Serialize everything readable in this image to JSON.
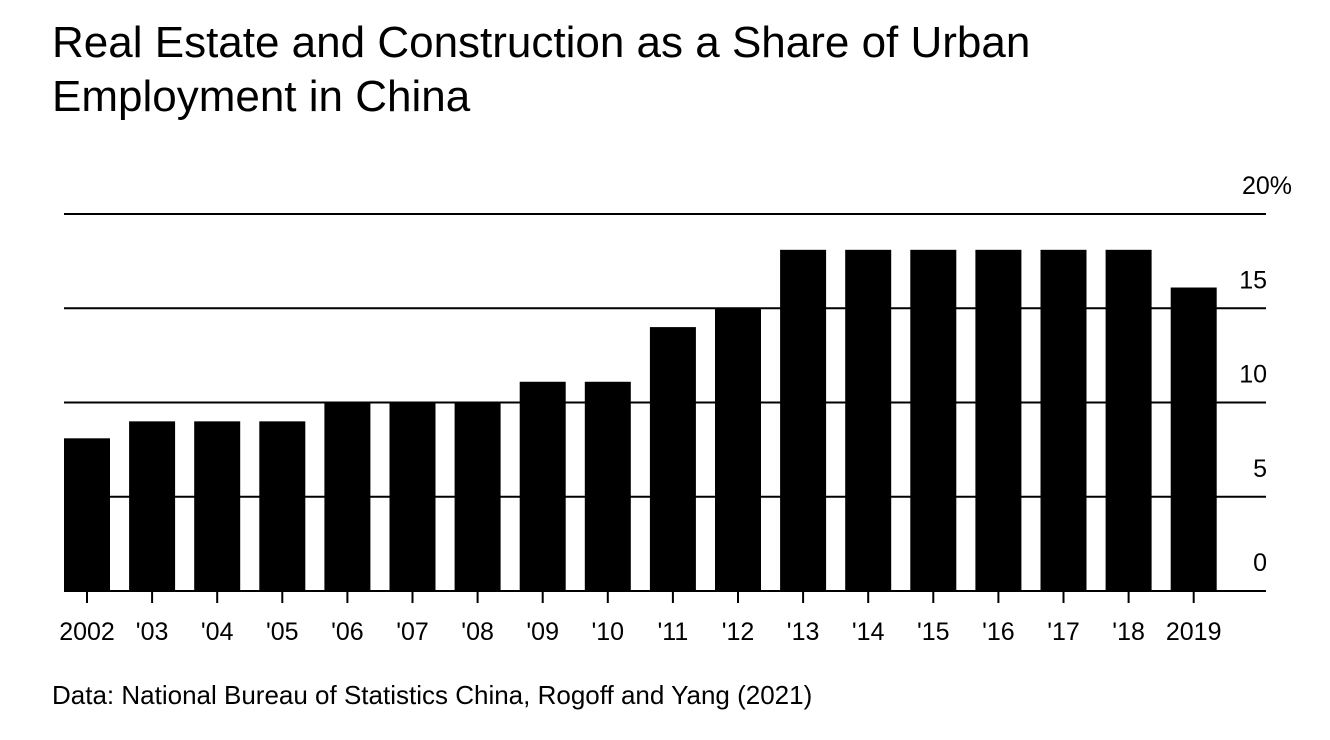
{
  "title": "Real Estate and Construction as a Share of Urban Employment in China",
  "source": "Data: National Bureau of Statistics China, Rogoff and Yang (2021)",
  "colors": {
    "bar": "#000000",
    "gridline": "#000000",
    "background": "#ffffff"
  },
  "chart_data": {
    "type": "bar",
    "title": "Real Estate and Construction as a Share of Urban Employment in China",
    "xlabel": "",
    "ylabel": "",
    "ylim": [
      0,
      20
    ],
    "grid": true,
    "y_axis_side": "right",
    "y_ticks": [
      0,
      5,
      10,
      15,
      20
    ],
    "y_tick_labels": [
      "0",
      "5",
      "10",
      "15",
      "20%"
    ],
    "categories": [
      "2002",
      "'03",
      "'04",
      "'05",
      "'06",
      "'07",
      "'08",
      "'09",
      "'10",
      "'11",
      "'12",
      "'13",
      "'14",
      "'15",
      "'16",
      "'17",
      "'18",
      "2019"
    ],
    "values": [
      8.1,
      9.0,
      9.0,
      9.0,
      10.0,
      10.0,
      10.0,
      11.1,
      11.1,
      14.0,
      15.0,
      18.1,
      18.1,
      18.1,
      18.1,
      18.1,
      18.1,
      16.1
    ]
  }
}
